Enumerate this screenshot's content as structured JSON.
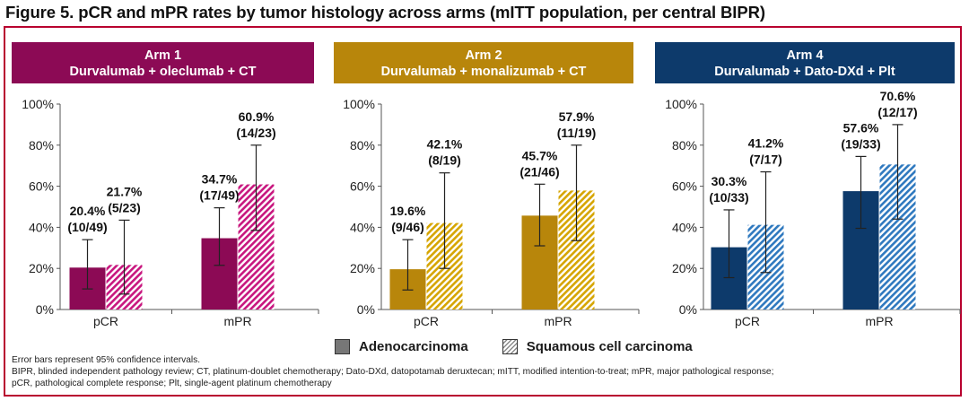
{
  "figure_title": "Figure 5. pCR and mPR rates by tumor histology across arms (mITT population, per central BIPR)",
  "legend": {
    "solid_label": "Adenocarcinoma",
    "hatched_label": "Squamous cell carcinoma"
  },
  "footnotes": [
    "Error bars represent 95% confidence intervals.",
    "BIPR, blinded independent pathology review; CT, platinum-doublet chemotherapy; Dato-DXd, datopotamab deruxtecan; mITT, modified intention-to-treat; mPR, major pathological response;",
    "pCR, pathological complete response; Plt, single-agent platinum chemotherapy"
  ],
  "chart_data": [
    {
      "type": "bar",
      "header": [
        "Arm 1",
        "Durvalumab + oleclumab + CT"
      ],
      "colors": {
        "header": "#8c0a55",
        "solid": "#8c0a55",
        "hatch": "#c8177f"
      },
      "categories": [
        "pCR",
        "mPR"
      ],
      "series": [
        {
          "name": "Adenocarcinoma",
          "values": [
            20.4,
            34.7
          ],
          "ci": [
            [
              10,
              34
            ],
            [
              21.5,
              49.5
            ]
          ],
          "labels": [
            [
              "20.4%",
              "(10/49)"
            ],
            [
              "34.7%",
              "(17/49)"
            ]
          ]
        },
        {
          "name": "Squamous cell carcinoma",
          "values": [
            21.7,
            60.9
          ],
          "ci": [
            [
              7.5,
              43.5
            ],
            [
              38.5,
              80
            ]
          ],
          "labels": [
            [
              "21.7%",
              "(5/23)"
            ],
            [
              "60.9%",
              "(14/23)"
            ]
          ]
        }
      ],
      "ylim": [
        0,
        100
      ],
      "yticks": [
        "0%",
        "20%",
        "40%",
        "60%",
        "80%",
        "100%"
      ]
    },
    {
      "type": "bar",
      "header": [
        "Arm 2",
        "Durvalumab + monalizumab + CT"
      ],
      "colors": {
        "header": "#b8860b",
        "solid": "#b8860b",
        "hatch": "#d6a500"
      },
      "categories": [
        "pCR",
        "mPR"
      ],
      "series": [
        {
          "name": "Adenocarcinoma",
          "values": [
            19.6,
            45.7
          ],
          "ci": [
            [
              9.5,
              34
            ],
            [
              31,
              61
            ]
          ],
          "labels": [
            [
              "19.6%",
              "(9/46)"
            ],
            [
              "45.7%",
              "(21/46)"
            ]
          ]
        },
        {
          "name": "Squamous cell carcinoma",
          "values": [
            42.1,
            57.9
          ],
          "ci": [
            [
              20,
              66.5
            ],
            [
              33.5,
              80
            ]
          ],
          "labels": [
            [
              "42.1%",
              "(8/19)"
            ],
            [
              "57.9%",
              "(11/19)"
            ]
          ]
        }
      ],
      "ylim": [
        0,
        100
      ],
      "yticks": [
        "0%",
        "20%",
        "40%",
        "60%",
        "80%",
        "100%"
      ]
    },
    {
      "type": "bar",
      "header": [
        "Arm 4",
        "Durvalumab + Dato-DXd + Plt"
      ],
      "colors": {
        "header": "#0d3a6b",
        "solid": "#0d3a6b",
        "hatch": "#2f79bf"
      },
      "categories": [
        "pCR",
        "mPR"
      ],
      "series": [
        {
          "name": "Adenocarcinoma",
          "values": [
            30.3,
            57.6
          ],
          "ci": [
            [
              15.5,
              48.5
            ],
            [
              39.5,
              74.5
            ]
          ],
          "labels": [
            [
              "30.3%",
              "(10/33)"
            ],
            [
              "57.6%",
              "(19/33)"
            ]
          ]
        },
        {
          "name": "Squamous cell carcinoma",
          "values": [
            41.2,
            70.6
          ],
          "ci": [
            [
              18,
              67
            ],
            [
              44,
              90
            ]
          ],
          "labels": [
            [
              "41.2%",
              "(7/17)"
            ],
            [
              "70.6%",
              "(12/17)"
            ]
          ]
        }
      ],
      "ylim": [
        0,
        100
      ],
      "yticks": [
        "0%",
        "20%",
        "40%",
        "60%",
        "80%",
        "100%"
      ]
    }
  ]
}
